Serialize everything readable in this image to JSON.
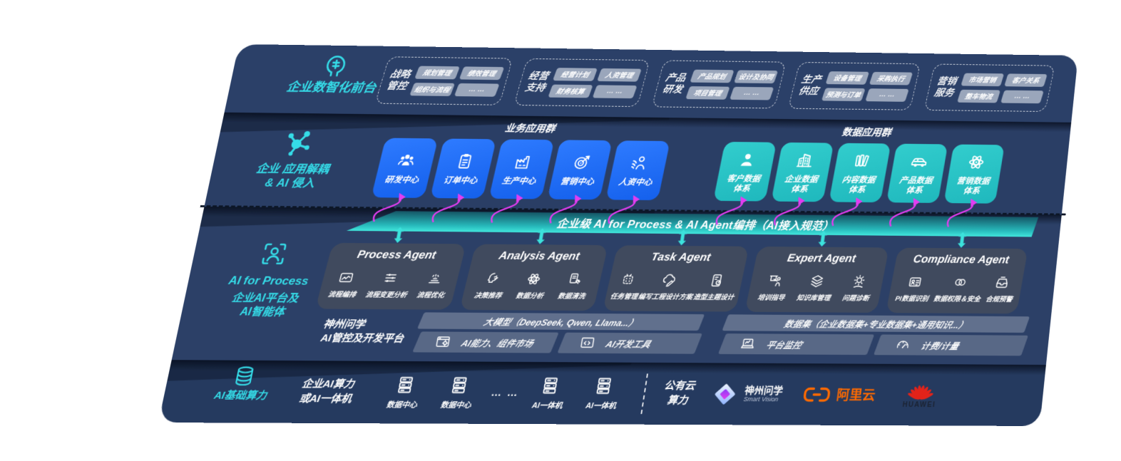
{
  "front_layer": {
    "label": "企业数智化前台",
    "groups": [
      {
        "title": [
          "战略",
          "管控"
        ],
        "chips": [
          "规划管理",
          "绩效管理",
          "组织与流程",
          "… …"
        ]
      },
      {
        "title": [
          "经营",
          "支持"
        ],
        "chips": [
          "经营计划",
          "人资管理",
          "财务核算",
          "… …"
        ]
      },
      {
        "title": [
          "产品",
          "研发"
        ],
        "chips": [
          "产品规划",
          "设计及协同",
          "项目管理",
          "… …"
        ]
      },
      {
        "title": [
          "生产",
          "供应"
        ],
        "chips": [
          "设备管理",
          "采购执行",
          "预测与订单",
          "… …"
        ]
      },
      {
        "title": [
          "营销",
          "服务"
        ],
        "chips": [
          "市场营销",
          "客户关系",
          "整车物流",
          "… …"
        ]
      }
    ]
  },
  "app_layer": {
    "label_line1": "企业 应用解耦",
    "label_line2": "& AI 侵入",
    "business_group_title": "业务应用群",
    "business_cards": [
      {
        "icon": "team-icon",
        "label": "研发中心"
      },
      {
        "icon": "clipboard-icon",
        "label": "订单中心"
      },
      {
        "icon": "factory-icon",
        "label": "生产中心"
      },
      {
        "icon": "target-icon",
        "label": "营销中心"
      },
      {
        "icon": "people-flow-icon",
        "label": "人资中心"
      }
    ],
    "data_group_title": "数据应用群",
    "data_cards": [
      {
        "icon": "person-icon",
        "label": "客户数据体系"
      },
      {
        "icon": "building-icon",
        "label": "企业数据体系"
      },
      {
        "icon": "books-icon",
        "label": "内容数据体系"
      },
      {
        "icon": "car-icon",
        "label": "产品数据体系"
      },
      {
        "icon": "atom-icon",
        "label": "营销数据体系"
      }
    ]
  },
  "ai_layer": {
    "band_title": "企业级 AI for Process & AI Agent编排（AI接入规范）",
    "label_en": "AI for Process",
    "label_cn": [
      "企业AI平台及",
      "AI智能体"
    ],
    "agents": [
      {
        "title": "Process Agent",
        "items": [
          {
            "icon": "workflow-icon",
            "label": "流程编排"
          },
          {
            "icon": "sliders-icon",
            "label": "流程变更分析"
          },
          {
            "icon": "optimize-icon",
            "label": "流程优化"
          }
        ]
      },
      {
        "title": "Analysis Agent",
        "items": [
          {
            "icon": "decision-icon",
            "label": "决策推荐"
          },
          {
            "icon": "atom-icon",
            "label": "数据分析"
          },
          {
            "icon": "clean-icon",
            "label": "数据清洗"
          }
        ]
      },
      {
        "title": "Task Agent",
        "items": [
          {
            "icon": "robot-task-icon",
            "label": "任务管理"
          },
          {
            "icon": "cloudpen-icon",
            "label": "编写工程设计方案"
          },
          {
            "icon": "design-icon",
            "label": "造型主题设计"
          }
        ]
      },
      {
        "title": "Expert Agent",
        "items": [
          {
            "icon": "training-icon",
            "label": "培训指导"
          },
          {
            "icon": "layers-icon",
            "label": "知识库管理"
          },
          {
            "icon": "diagnose-icon",
            "label": "问题诊断"
          }
        ]
      },
      {
        "title": "Compliance Agent",
        "items": [
          {
            "icon": "idcard-icon",
            "label": "PI数据识别"
          },
          {
            "icon": "rings-icon",
            "label": "数据权限＆安全"
          },
          {
            "icon": "inbox-icon",
            "label": "合规预警"
          }
        ]
      }
    ],
    "platform": {
      "label": [
        "神州问学",
        "AI管控及开发平台"
      ],
      "model_bar": "大模型（DeepSeek, Qwen, Llama...）",
      "dataset_bar": "数据集（企业数据集+专业数据集+通用知识...）",
      "tools": [
        {
          "icon": "capability-icon",
          "label": "AI能力、组件市场"
        },
        {
          "icon": "devtools-icon",
          "label": "AI开发工具"
        },
        {
          "icon": "laptop-icon",
          "label": "平台监控"
        },
        {
          "icon": "gauge-icon",
          "label": "计费/计量"
        }
      ]
    }
  },
  "infra_layer": {
    "label": "AI基础算力",
    "compute_text": [
      "企业AI算力",
      "或AI一体机"
    ],
    "nodes": [
      {
        "icon": "server-icon",
        "label": "数据中心"
      },
      {
        "icon": "server-icon",
        "label": "数据中心"
      },
      {
        "dots": "… …"
      },
      {
        "icon": "server-icon",
        "label": "AI一体机"
      },
      {
        "icon": "server-icon",
        "label": "AI一体机"
      }
    ],
    "public_cloud": [
      "公有云",
      "算力"
    ],
    "vendors": [
      {
        "logo": "smartvision-logo",
        "name": "神州问学",
        "sub": "Smart Vision"
      },
      {
        "logo": "aliyun-logo",
        "name": "阿里云"
      },
      {
        "logo": "huawei-logo",
        "name": "HUAWEI"
      }
    ]
  },
  "colors": {
    "band_navy": "#2b4068",
    "accent_cyan": "#35dce8",
    "card_blue": "#1b6af0",
    "card_teal": "#28c5c7",
    "orchestration_teal": "#35dbd6",
    "arrow_magenta": "#e23df0",
    "aliyun_orange": "#ff6a00",
    "huawei_red": "#e2231a"
  }
}
